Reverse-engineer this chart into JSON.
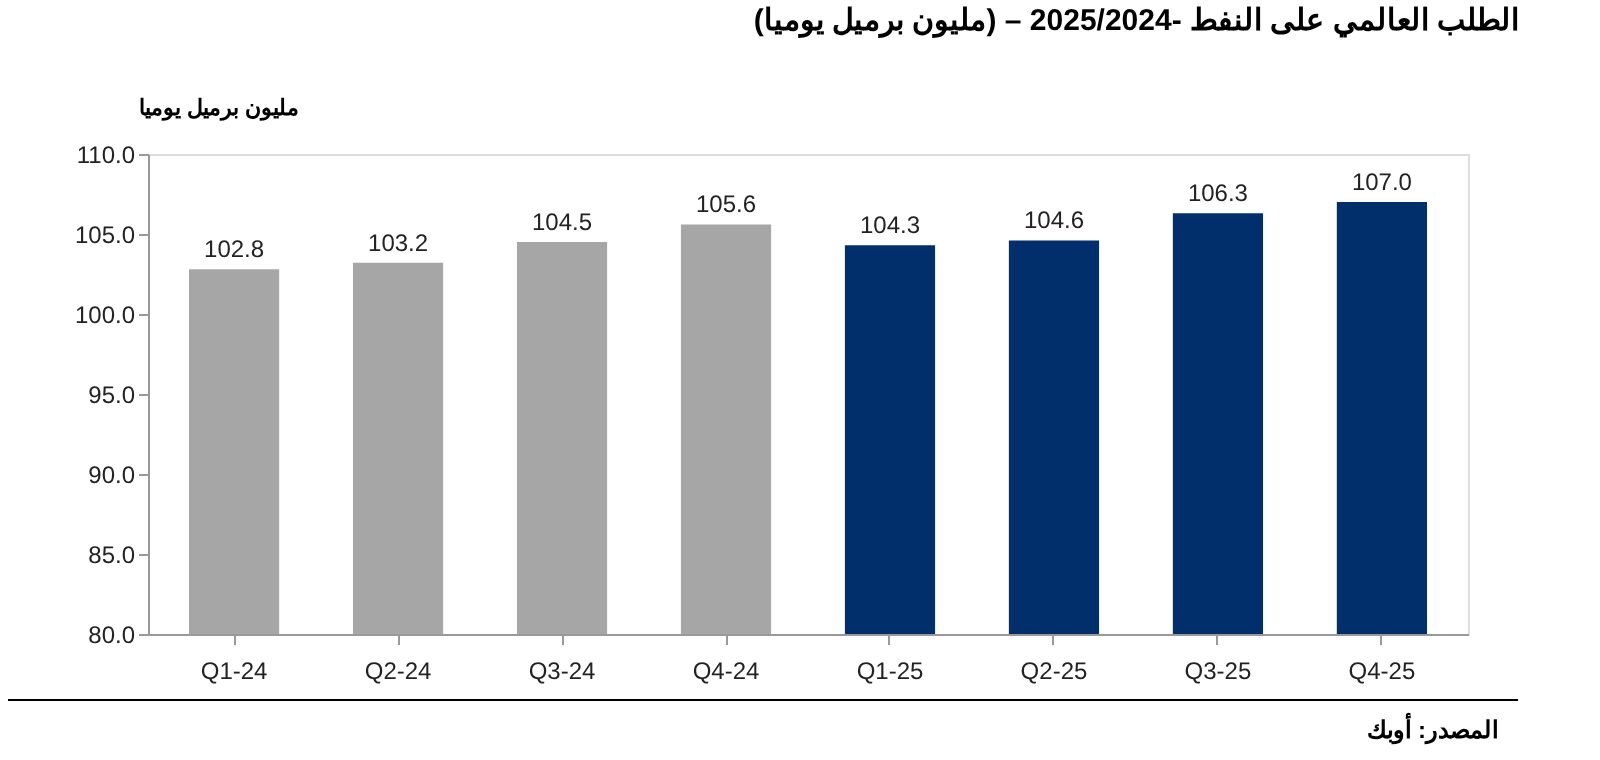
{
  "chart_data": {
    "type": "bar",
    "title": "الطلب العالمي على النفط -2025/2024 – (مليون برميل يوميا)",
    "ylabel": "مليون برميل يوميا",
    "categories": [
      "Q1-24",
      "Q2-24",
      "Q3-24",
      "Q4-24",
      "Q1-25",
      "Q2-25",
      "Q3-25",
      "Q4-25"
    ],
    "values": [
      102.8,
      103.2,
      104.5,
      105.6,
      104.3,
      104.6,
      106.3,
      107.0
    ],
    "value_labels": [
      "102.8",
      "103.2",
      "104.5",
      "105.6",
      "104.3",
      "104.6",
      "106.3",
      "107.0"
    ],
    "colors": [
      "#a6a6a6",
      "#a6a6a6",
      "#a6a6a6",
      "#a6a6a6",
      "#002f6c",
      "#002f6c",
      "#002f6c",
      "#002f6c"
    ],
    "ylim": [
      80,
      110
    ],
    "yticks": [
      {
        "value": 80,
        "label": "80.0"
      },
      {
        "value": 85,
        "label": "85.0"
      },
      {
        "value": 90,
        "label": "90.0"
      },
      {
        "value": 95,
        "label": "95.0"
      },
      {
        "value": 100,
        "label": "100.0"
      },
      {
        "value": 105,
        "label": "105.0"
      },
      {
        "value": 110,
        "label": "110.0"
      }
    ],
    "grid": false,
    "annotations": [
      "المصدر: أوبك"
    ]
  }
}
